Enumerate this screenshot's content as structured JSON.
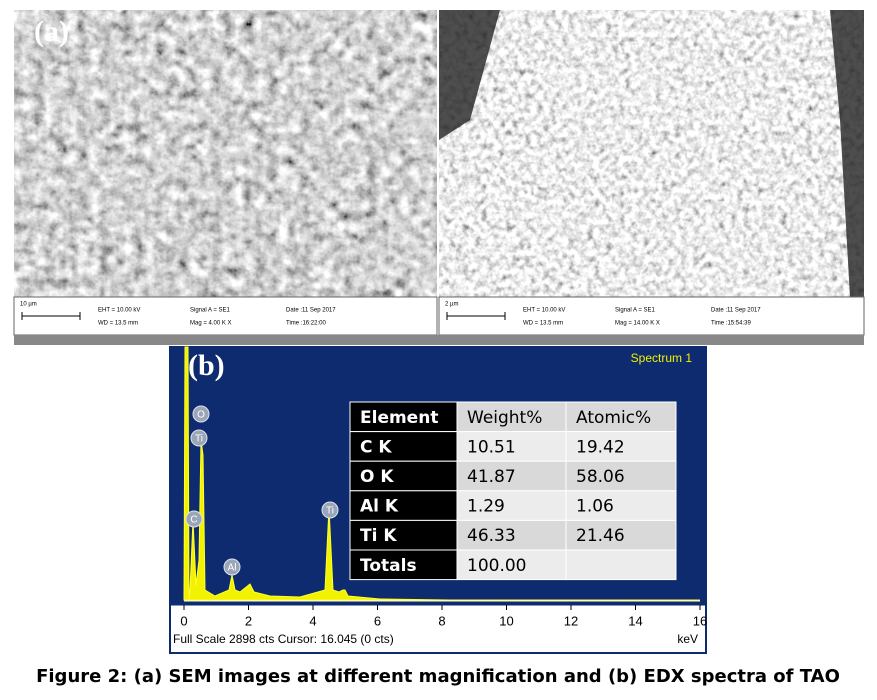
{
  "panel_a": {
    "label": "(a)",
    "images": [
      {
        "scale": "10 µm",
        "eht": "EHT = 10.00 kV",
        "wd": "WD = 13.5 mm",
        "signal": "Signal A = SE1",
        "mag": "Mag =  4.00 K X",
        "date": "Date :11 Sep 2017",
        "time": "Time :16:22:00"
      },
      {
        "scale": "2 µm",
        "eht": "EHT = 10.00 kV",
        "wd": "WD = 13.5 mm",
        "signal": "Signal A = SE1",
        "mag": "Mag =  14.00 K X",
        "date": "Date :11 Sep 2017",
        "time": "Time :15:54:39"
      }
    ]
  },
  "panel_b": {
    "label": "(b)",
    "spectrum_name": "Spectrum 1",
    "peak_labels": [
      "O",
      "Ti",
      "C",
      "Ti",
      "Al"
    ],
    "xlim": [
      0,
      16
    ],
    "xticks": [
      0,
      2,
      4,
      6,
      8,
      10,
      12,
      14,
      16
    ],
    "x_unit": "keV",
    "footer": "Full Scale 2898 cts Cursor: 16.045  (0 cts)",
    "table": {
      "header": [
        "Element",
        "Weight%",
        "Atomic%"
      ],
      "rows": [
        [
          "C K",
          "10.51",
          "19.42"
        ],
        [
          "O K",
          "41.87",
          "58.06"
        ],
        [
          "Al K",
          "1.29",
          "1.06"
        ],
        [
          "Ti K",
          "46.33",
          "21.46"
        ],
        [
          "Totals",
          "100.00",
          ""
        ]
      ]
    }
  },
  "caption": "Figure 2: (a) SEM images at different magnification and (b) EDX spectra of TAO"
}
